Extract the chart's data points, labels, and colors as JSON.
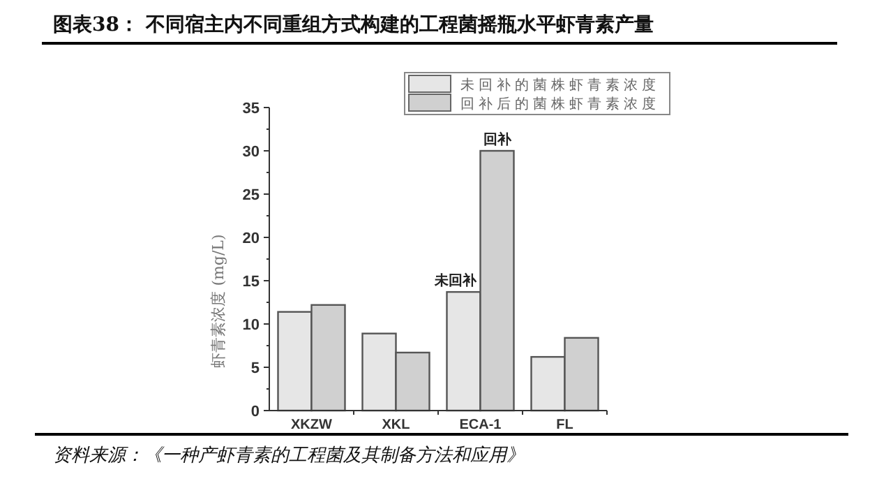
{
  "chart_data": {
    "type": "bar",
    "title": "图表38：  不同宿主内不同重组方式构建的工程菌摇瓶水平虾青素产量",
    "ylabel": "虾青素浓度 (mg/L)",
    "categories": [
      "XKZW",
      "XKL",
      "ECA-1",
      "FL"
    ],
    "series": [
      {
        "name": "未回补的菌株虾青素浓度",
        "color": "#e6e6e6",
        "values": [
          11.4,
          8.9,
          13.7,
          6.2
        ]
      },
      {
        "name": "回补后的菌株虾青素浓度",
        "color": "#d0d0d0",
        "values": [
          12.2,
          6.7,
          30.0,
          8.4
        ]
      }
    ],
    "ylim": [
      0,
      35
    ],
    "yticks": [
      0,
      5,
      10,
      15,
      20,
      25,
      30,
      35
    ],
    "legend": "top right",
    "grid": false,
    "annotations": [
      {
        "text": "未回补",
        "x": "ECA-1",
        "y": 13.7
      },
      {
        "text": "回补",
        "x": "ECA-1",
        "y": 30.0
      },
      "资料来源：《一种产虾青素的工程菌及其制备方法和应用》"
    ]
  }
}
